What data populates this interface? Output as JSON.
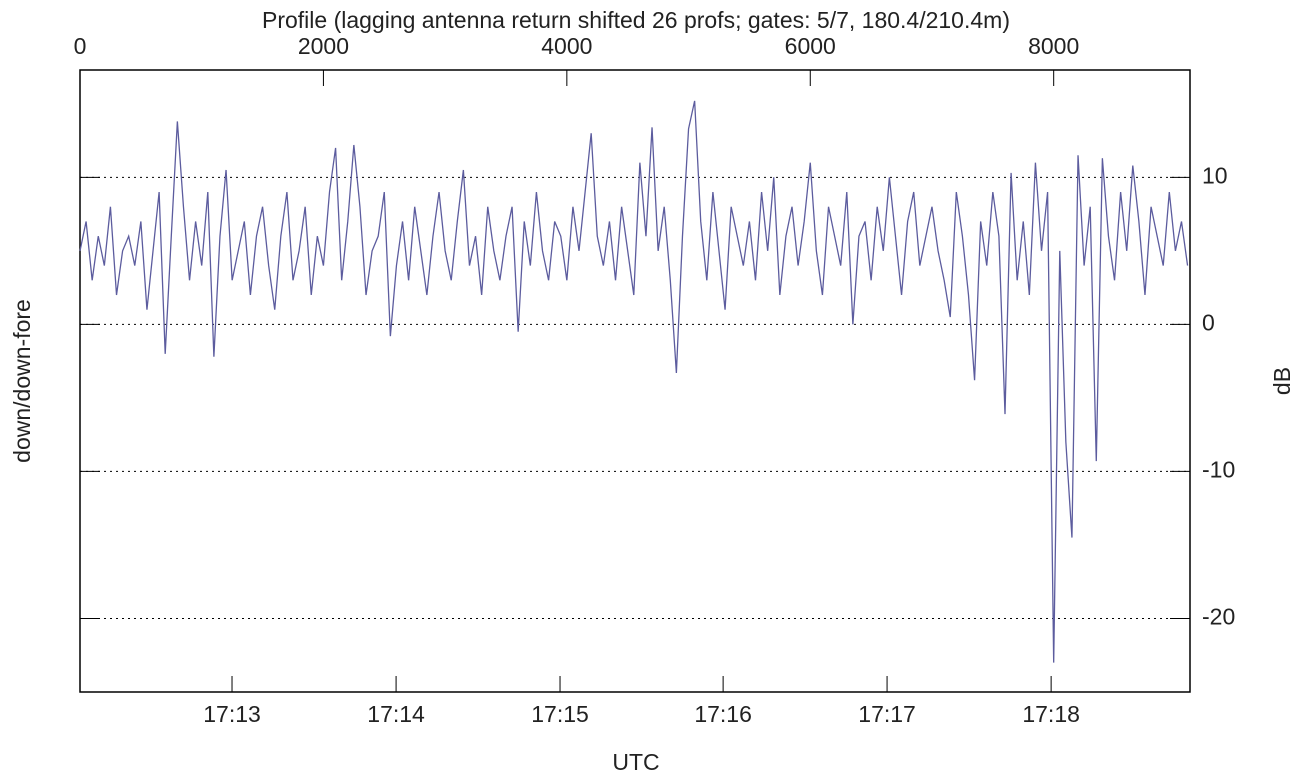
{
  "chart_data": {
    "type": "line",
    "title": "Profile (lagging antenna return shifted 26 profs; gates: 5/7, 180.4/210.4m)",
    "y_label": "down/down-fore",
    "y2_label": "dB",
    "x2_label": "UTC",
    "xlim": [
      0,
      9120
    ],
    "xticks": [
      0,
      2000,
      4000,
      6000,
      8000
    ],
    "x2ticks": [
      {
        "value": 1249,
        "label": "17:13"
      },
      {
        "value": 2597,
        "label": "17:14"
      },
      {
        "value": 3944,
        "label": "17:15"
      },
      {
        "value": 5284,
        "label": "17:16"
      },
      {
        "value": 6631,
        "label": "17:17"
      },
      {
        "value": 7979,
        "label": "17:18"
      }
    ],
    "ylim": [
      -25,
      17.3
    ],
    "yticks": [
      10,
      0,
      -10,
      -20
    ],
    "grid": true,
    "x": [
      0,
      50,
      100,
      150,
      200,
      250,
      300,
      350,
      400,
      450,
      500,
      550,
      600,
      650,
      700,
      750,
      800,
      850,
      900,
      950,
      1000,
      1050,
      1100,
      1150,
      1200,
      1250,
      1300,
      1350,
      1400,
      1450,
      1500,
      1550,
      1600,
      1650,
      1700,
      1750,
      1800,
      1850,
      1900,
      1950,
      2000,
      2050,
      2100,
      2150,
      2200,
      2250,
      2300,
      2350,
      2400,
      2450,
      2500,
      2550,
      2600,
      2650,
      2700,
      2750,
      2800,
      2850,
      2900,
      2950,
      3000,
      3050,
      3100,
      3150,
      3200,
      3250,
      3300,
      3350,
      3400,
      3450,
      3500,
      3550,
      3600,
      3650,
      3700,
      3750,
      3800,
      3850,
      3900,
      3950,
      4000,
      4050,
      4100,
      4150,
      4200,
      4250,
      4300,
      4350,
      4400,
      4450,
      4500,
      4550,
      4600,
      4650,
      4700,
      4750,
      4800,
      4850,
      4900,
      4950,
      5000,
      5050,
      5100,
      5150,
      5200,
      5250,
      5300,
      5350,
      5400,
      5450,
      5500,
      5550,
      5600,
      5650,
      5700,
      5750,
      5800,
      5850,
      5900,
      5950,
      6000,
      6050,
      6100,
      6150,
      6200,
      6250,
      6300,
      6350,
      6400,
      6450,
      6500,
      6550,
      6600,
      6650,
      6700,
      6750,
      6800,
      6850,
      6900,
      6950,
      7000,
      7050,
      7100,
      7150,
      7200,
      7250,
      7300,
      7350,
      7400,
      7450,
      7500,
      7550,
      7600,
      7650,
      7700,
      7750,
      7800,
      7850,
      7900,
      7950,
      8000,
      8050,
      8100,
      8150,
      8200,
      8250,
      8300,
      8350,
      8400,
      8450,
      8500,
      8550,
      8600,
      8650,
      8700,
      8750,
      8800,
      8850,
      8900,
      8950,
      9000,
      9050,
      9100
    ],
    "series": [
      {
        "color": "#5c5c9e",
        "values": [
          5,
          7,
          3,
          6,
          4,
          8,
          2,
          5,
          6,
          4,
          7,
          1,
          5,
          9,
          -2,
          6,
          13.8,
          8,
          3,
          7,
          4,
          9,
          -2.2,
          6,
          10.5,
          3,
          5,
          7,
          2,
          6,
          8,
          4,
          1,
          6,
          9,
          3,
          5,
          8,
          2,
          6,
          4,
          9,
          12,
          3,
          7,
          12.2,
          8,
          2,
          5,
          6,
          9,
          -0.8,
          4,
          7,
          3,
          8,
          5,
          2,
          6,
          9,
          5,
          3,
          7,
          10.5,
          4,
          6,
          2,
          8,
          5,
          3,
          6,
          8,
          -0.5,
          7,
          4,
          9,
          5,
          3,
          7,
          6,
          3,
          8,
          5,
          9,
          13,
          6,
          4,
          7,
          3,
          8,
          5,
          2,
          11,
          6,
          13.4,
          5,
          8,
          3,
          -3.3,
          6,
          13.3,
          15.2,
          7,
          3,
          9,
          5,
          1,
          8,
          6,
          4,
          7,
          3,
          9,
          5,
          10,
          2,
          6,
          8,
          4,
          7,
          11,
          5,
          2,
          8,
          6,
          4,
          9,
          0,
          6,
          7,
          3,
          8,
          5,
          10,
          6,
          2,
          7,
          9,
          4,
          6,
          8,
          5,
          3,
          0.5,
          9,
          6,
          2,
          -3.8,
          7,
          4,
          9,
          6,
          -6.1,
          10.3,
          3,
          7,
          2,
          11,
          5,
          9,
          -23,
          5,
          -8,
          -14.5,
          11.5,
          4,
          8,
          -9.3,
          11.3,
          6,
          3,
          9,
          5,
          10.8,
          7,
          2,
          8,
          6,
          4,
          9,
          5,
          7,
          4
        ]
      }
    ]
  }
}
